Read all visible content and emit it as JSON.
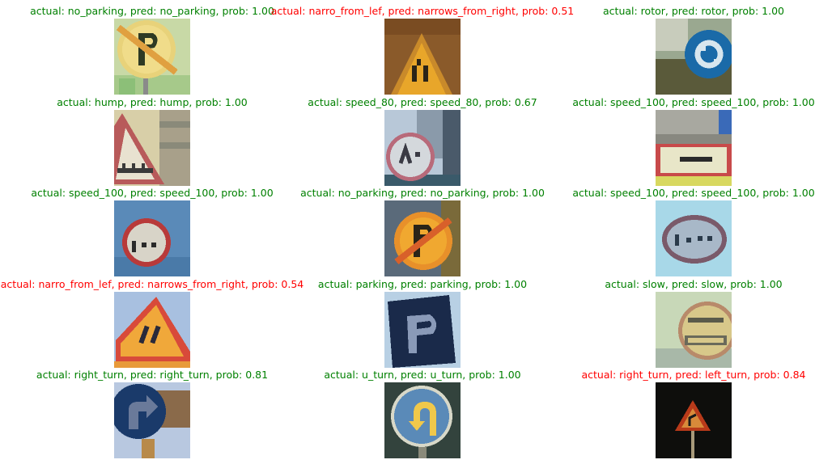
{
  "colors": {
    "correct": "#008000",
    "wrong": "#ff0000"
  },
  "grid": [
    {
      "caption": "actual: no_parking, pred: no_parking, prob: 1.00",
      "correct": true,
      "icon": "no-parking-sign-icon"
    },
    {
      "caption": "actual: narro_from_lef, pred: narrows_from_right, prob: 0.51",
      "correct": false,
      "icon": "road-narrows-sign-icon"
    },
    {
      "caption": "actual: rotor, pred: rotor, prob: 1.00",
      "correct": true,
      "icon": "roundabout-sign-icon"
    },
    {
      "caption": "actual: hump, pred: hump, prob: 1.00",
      "correct": true,
      "icon": "hump-sign-icon"
    },
    {
      "caption": "actual: speed_80, pred: speed_80, prob: 0.67",
      "correct": true,
      "icon": "speed-80-sign-icon"
    },
    {
      "caption": "actual: speed_100, pred: speed_100, prob: 1.00",
      "correct": true,
      "icon": "speed-100-sign-icon"
    },
    {
      "caption": "actual: speed_100, pred: speed_100, prob: 1.00",
      "correct": true,
      "icon": "speed-100-sign-icon"
    },
    {
      "caption": "actual: no_parking, pred: no_parking, prob: 1.00",
      "correct": true,
      "icon": "no-parking-sign-icon"
    },
    {
      "caption": "actual: speed_100, pred: speed_100, prob: 1.00",
      "correct": true,
      "icon": "speed-100-sign-icon"
    },
    {
      "caption": "actual: narro_from_lef, pred: narrows_from_right, prob: 0.54",
      "correct": false,
      "icon": "road-narrows-sign-icon"
    },
    {
      "caption": "actual: parking, pred: parking, prob: 1.00",
      "correct": true,
      "icon": "parking-sign-icon"
    },
    {
      "caption": "actual: slow, pred: slow, prob: 1.00",
      "correct": true,
      "icon": "slow-sign-icon"
    },
    {
      "caption": "actual: right_turn, pred: right_turn, prob: 0.81",
      "correct": true,
      "icon": "right-turn-sign-icon"
    },
    {
      "caption": "actual: u_turn, pred: u_turn, prob: 1.00",
      "correct": true,
      "icon": "u-turn-sign-icon"
    },
    {
      "caption": "actual: right_turn, pred: left_turn, prob: 0.84",
      "correct": false,
      "icon": "right-turn-warning-sign-icon"
    }
  ]
}
